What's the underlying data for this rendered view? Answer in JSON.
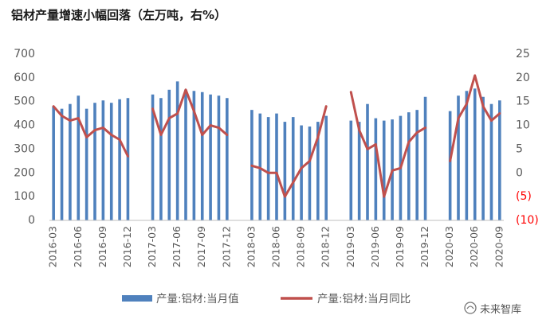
{
  "title": "铝材产量增速小幅回落（左万吨，右%）",
  "watermark": "未来智库",
  "colors": {
    "bar": "#4F81BD",
    "line": "#C0504D",
    "negative_tick": "#FF0000",
    "axis_text": "#595959"
  },
  "chart_data": {
    "type": "bar+line",
    "title": "铝材产量增速小幅回落（左万吨，右%）",
    "left_axis": {
      "min": 0,
      "max": 700,
      "ticks": [
        "0",
        "100",
        "200",
        "300",
        "400",
        "500",
        "600",
        "700"
      ]
    },
    "right_axis": {
      "min": -10,
      "max": 25,
      "ticks": [
        "(10)",
        "(5)",
        "0",
        "5",
        "10",
        "15",
        "20",
        "25"
      ],
      "tick_values": [
        -10,
        -5,
        0,
        5,
        10,
        15,
        20,
        25
      ]
    },
    "x_tick_labels": [
      "2016-03",
      "2016-06",
      "2016-09",
      "2016-12",
      "2017-03",
      "2017-06",
      "2017-09",
      "2017-12",
      "2018-03",
      "2018-06",
      "2018-09",
      "2018-12",
      "2019-03",
      "2019-06",
      "2019-09",
      "2019-12",
      "2020-03",
      "2020-06",
      "2020-09"
    ],
    "x": [
      "2016-03",
      "2016-04",
      "2016-05",
      "2016-06",
      "2016-07",
      "2016-08",
      "2016-09",
      "2016-10",
      "2016-11",
      "2016-12",
      "2017-01",
      "2017-02",
      "2017-03",
      "2017-04",
      "2017-05",
      "2017-06",
      "2017-07",
      "2017-08",
      "2017-09",
      "2017-10",
      "2017-11",
      "2017-12",
      "2018-01",
      "2018-02",
      "2018-03",
      "2018-04",
      "2018-05",
      "2018-06",
      "2018-07",
      "2018-08",
      "2018-09",
      "2018-10",
      "2018-11",
      "2018-12",
      "2019-01",
      "2019-02",
      "2019-03",
      "2019-04",
      "2019-05",
      "2019-06",
      "2019-07",
      "2019-08",
      "2019-09",
      "2019-10",
      "2019-11",
      "2019-12",
      "2020-01",
      "2020-02",
      "2020-03",
      "2020-04",
      "2020-05",
      "2020-06",
      "2020-07",
      "2020-08",
      "2020-09"
    ],
    "grid": false,
    "legend_position": "bottom",
    "series": [
      {
        "name": "产量:铝材:当月值",
        "type": "bar",
        "axis": "left",
        "values": [
          480,
          470,
          490,
          525,
          470,
          495,
          505,
          495,
          510,
          515,
          null,
          null,
          530,
          515,
          550,
          585,
          550,
          545,
          540,
          530,
          525,
          515,
          null,
          null,
          465,
          450,
          435,
          450,
          415,
          435,
          400,
          395,
          415,
          440,
          null,
          null,
          420,
          415,
          490,
          430,
          420,
          425,
          440,
          455,
          465,
          520,
          null,
          null,
          460,
          525,
          545,
          555,
          520,
          490,
          505
        ]
      },
      {
        "name": "产量:铝材:当月同比",
        "type": "line",
        "axis": "right",
        "values": [
          14,
          12,
          11,
          11.5,
          7.5,
          9,
          9.5,
          8,
          7,
          3.5,
          null,
          null,
          13.5,
          8,
          11.5,
          12.5,
          17.5,
          13,
          8,
          10,
          9.5,
          8,
          null,
          null,
          1.5,
          1,
          0,
          0,
          -5,
          -2,
          1,
          2.5,
          7.5,
          14,
          null,
          null,
          17,
          9,
          5,
          6,
          -5,
          0.5,
          1,
          6.5,
          8.5,
          9.5,
          null,
          null,
          2.5,
          11.5,
          14.5,
          20.5,
          14,
          11,
          12.5
        ]
      }
    ]
  }
}
